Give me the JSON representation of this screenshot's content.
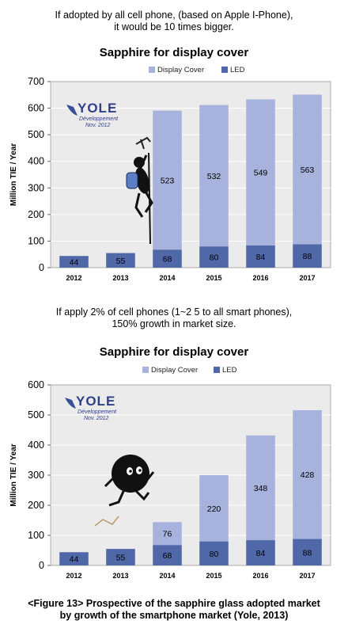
{
  "top_note": {
    "line1": "If adopted by all cell phone, (based on Apple I-Phone),",
    "line2": "it would be 10 times bigger."
  },
  "middle_note": {
    "line1": "If apply 2% of cell phones (1~2 5 to all smart phones),",
    "line2": "150%  growth in market size."
  },
  "logo": {
    "name": "YOLE",
    "sub1": "Développement",
    "sub2": "Nov. 2012"
  },
  "colors": {
    "display_cover": "#a7b3dc",
    "led": "#5068a8",
    "plot_bg": "#ebebeb",
    "grid": "#ffffff"
  },
  "chart_data": [
    {
      "type": "bar",
      "stacked": true,
      "title": "Sapphire for display cover",
      "ylabel": "Million TIE / Year",
      "xlabel": "",
      "ylim": [
        0,
        700
      ],
      "yticks": [
        "0",
        "100",
        "200",
        "300",
        "400",
        "500",
        "600",
        "700"
      ],
      "categories": [
        "2012",
        "2013",
        "2014",
        "2015",
        "2016",
        "2017"
      ],
      "legend": {
        "placement": "top",
        "entries": [
          "Display Cover",
          "LED"
        ]
      },
      "grid": true,
      "series": [
        {
          "name": "LED",
          "values": [
            44,
            55,
            68,
            80,
            84,
            88
          ],
          "labels": [
            "44",
            "55",
            "68",
            "80",
            "84",
            "88"
          ]
        },
        {
          "name": "Display Cover",
          "values": [
            0,
            0,
            523,
            532,
            549,
            563
          ],
          "labels": [
            "",
            "",
            "523",
            "532",
            "549",
            "563"
          ]
        }
      ]
    },
    {
      "type": "bar",
      "stacked": true,
      "title": "Sapphire for display cover",
      "ylabel": "Million TIE / Year",
      "xlabel": "",
      "ylim": [
        0,
        600
      ],
      "yticks": [
        "0",
        "100",
        "200",
        "300",
        "400",
        "500",
        "600"
      ],
      "categories": [
        "2012",
        "2013",
        "2014",
        "2015",
        "2016",
        "2017"
      ],
      "legend": {
        "placement": "top",
        "entries": [
          "Display Cover",
          "LED"
        ]
      },
      "grid": true,
      "series": [
        {
          "name": "LED",
          "values": [
            44,
            55,
            68,
            80,
            84,
            88
          ],
          "labels": [
            "44",
            "55",
            "68",
            "80",
            "84",
            "88"
          ]
        },
        {
          "name": "Display Cover",
          "values": [
            0,
            0,
            76,
            220,
            348,
            428
          ],
          "labels": [
            "",
            "",
            "76",
            "220",
            "348",
            "428"
          ]
        }
      ]
    }
  ],
  "caption": {
    "line1": "<Figure 13> Prospective of the sapphire glass adopted market",
    "line2": "by growth of the smartphone market (Yole, 2013)"
  }
}
